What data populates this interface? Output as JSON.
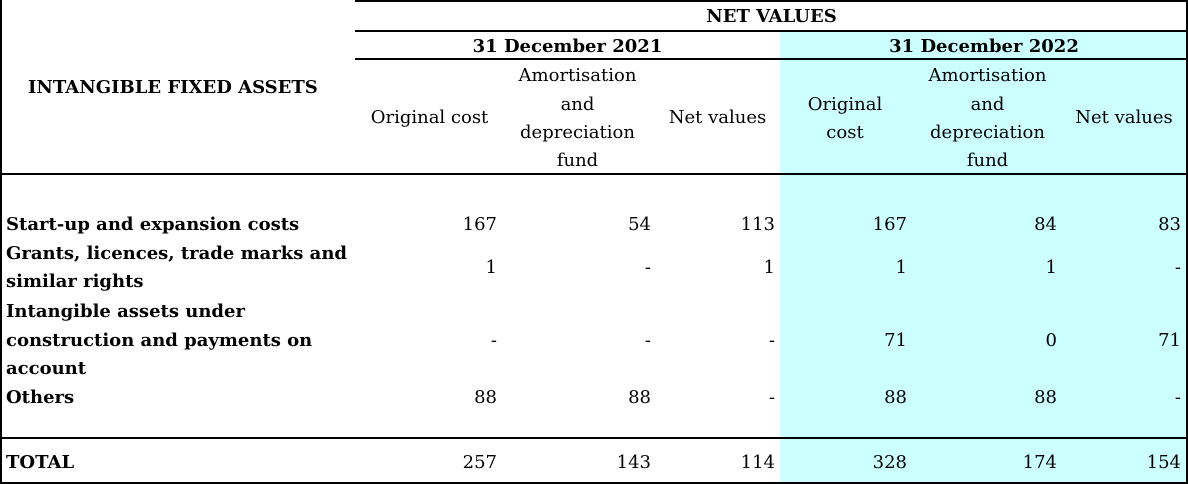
{
  "header": {
    "section_title": "INTANGIBLE FIXED ASSETS",
    "group_title": "NET VALUES",
    "periods": [
      {
        "label": "31 December 2021",
        "col_original": "Original cost",
        "col_amort": [
          "Amortisation",
          "and",
          "depreciation",
          "fund"
        ],
        "col_net": "Net values"
      },
      {
        "label": "31 December 2022",
        "col_original": [
          "Original",
          "cost"
        ],
        "col_amort": [
          "Amortisation",
          "and",
          "depreciation",
          "fund"
        ],
        "col_net": "Net values"
      }
    ]
  },
  "rows": [
    {
      "label": [
        "Start-up and expansion costs"
      ],
      "values": [
        "167",
        "54",
        "113",
        "167",
        "84",
        "83"
      ]
    },
    {
      "label": [
        "Grants, licences, trade marks and",
        "similar rights"
      ],
      "values": [
        "1",
        "-",
        "1",
        "1",
        "1",
        "-"
      ]
    },
    {
      "label": [
        "Intangible assets under",
        "construction and payments on",
        "account"
      ],
      "values": [
        "-",
        "-",
        "-",
        "71",
        "0",
        "71"
      ]
    },
    {
      "label": [
        "Others"
      ],
      "values": [
        "88",
        "88",
        "-",
        "88",
        "88",
        "-"
      ]
    }
  ],
  "total": {
    "label": "TOTAL",
    "values": [
      "257",
      "143",
      "114",
      "328",
      "174",
      "154"
    ]
  },
  "colors": {
    "highlight": "#ccffff"
  }
}
